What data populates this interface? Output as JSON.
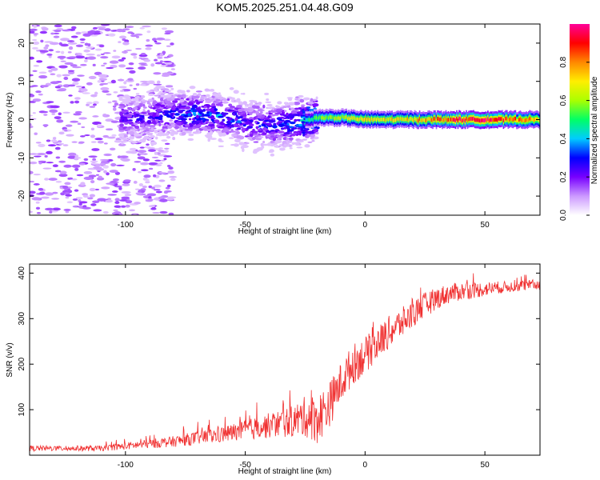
{
  "title": "KOM5.2025.251.04.48.G09",
  "chart_data": [
    {
      "type": "heatmap",
      "title": "KOM5.2025.251.04.48.G09",
      "xlabel": "Height of straight line (km)",
      "ylabel": "Frequency (Hz)",
      "xlim": [
        -140,
        73
      ],
      "ylim": [
        -25,
        25
      ],
      "xticks": [
        -100,
        -50,
        0,
        50
      ],
      "yticks": [
        -20,
        -10,
        0,
        10,
        20
      ],
      "colorbar": {
        "label": "Normalized spectral amplitude",
        "range": [
          0,
          1
        ],
        "ticks": [
          "0.0",
          "0.2",
          "0.4",
          "0.6",
          "0.8"
        ],
        "colors": [
          "#ffffff",
          "#cc99ff",
          "#7700ff",
          "#0000ff",
          "#00ccff",
          "#00ff66",
          "#aaff00",
          "#ffee00",
          "#ff8800",
          "#ff0000",
          "#ff0099"
        ]
      },
      "band_profile": {
        "heights_km": [
          -95,
          -80,
          -70,
          -60,
          -50,
          -40,
          -30,
          -20,
          -10,
          0,
          10,
          20,
          30,
          40,
          50,
          60,
          73
        ],
        "center_frequency_hz": [
          0.5,
          1.5,
          1.5,
          1.0,
          -1.0,
          -1.5,
          -1.0,
          0.5,
          0.5,
          0.0,
          0.0,
          0.0,
          0.0,
          0.0,
          0.0,
          0.0,
          0.0
        ],
        "peak_amplitude": [
          0.25,
          0.3,
          0.35,
          0.35,
          0.3,
          0.3,
          0.35,
          0.55,
          0.65,
          0.7,
          0.7,
          0.75,
          0.85,
          0.95,
          0.95,
          0.85,
          0.75
        ]
      }
    },
    {
      "type": "line",
      "xlabel": "Height of straight line (km)",
      "ylabel": "SNR (v/v)",
      "xlim": [
        -140,
        73
      ],
      "ylim": [
        0,
        420
      ],
      "xticks": [
        -100,
        -50,
        0,
        50
      ],
      "yticks": [
        100,
        200,
        300,
        400
      ],
      "series": [
        {
          "name": "SNR",
          "color": "#f03030",
          "x": [
            -140,
            -130,
            -120,
            -110,
            -100,
            -90,
            -80,
            -70,
            -60,
            -50,
            -40,
            -30,
            -25,
            -20,
            -15,
            -10,
            -5,
            0,
            5,
            10,
            15,
            20,
            25,
            30,
            35,
            40,
            45,
            50,
            55,
            60,
            65,
            73
          ],
          "y": [
            15,
            15,
            15,
            15,
            20,
            25,
            30,
            38,
            45,
            55,
            65,
            75,
            85,
            80,
            110,
            160,
            200,
            220,
            245,
            270,
            290,
            310,
            330,
            345,
            355,
            360,
            362,
            365,
            368,
            370,
            372,
            375
          ],
          "noise": [
            6,
            6,
            6,
            6,
            8,
            10,
            12,
            15,
            18,
            22,
            28,
            35,
            45,
            55,
            50,
            45,
            45,
            40,
            38,
            36,
            34,
            30,
            28,
            24,
            22,
            20,
            18,
            16,
            14,
            12,
            12,
            12
          ]
        }
      ]
    }
  ]
}
